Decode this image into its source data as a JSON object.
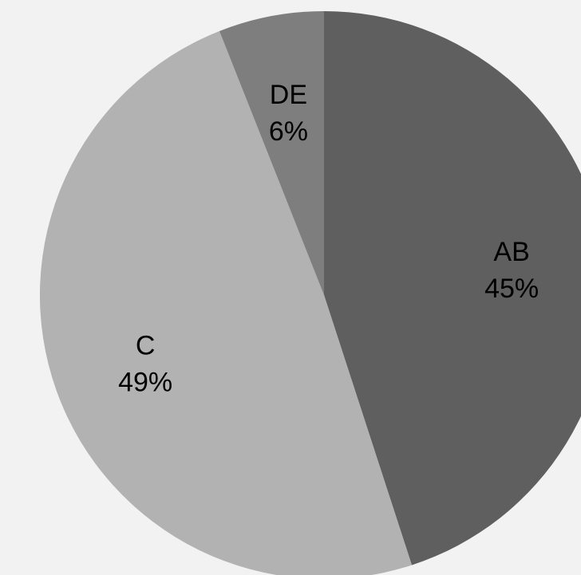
{
  "chart_data": {
    "type": "pie",
    "title": "",
    "start_angle_deg": 0,
    "direction": "clockwise",
    "background": "#f2f2f2",
    "slices": [
      {
        "category": "AB",
        "value": 45,
        "label": "45%",
        "color": "#5f5f5f"
      },
      {
        "category": "C",
        "value": 49,
        "label": "49%",
        "color": "#b2b2b2"
      },
      {
        "category": "DE",
        "value": 6,
        "label": "6%",
        "color": "#7e7e7e"
      }
    ]
  }
}
